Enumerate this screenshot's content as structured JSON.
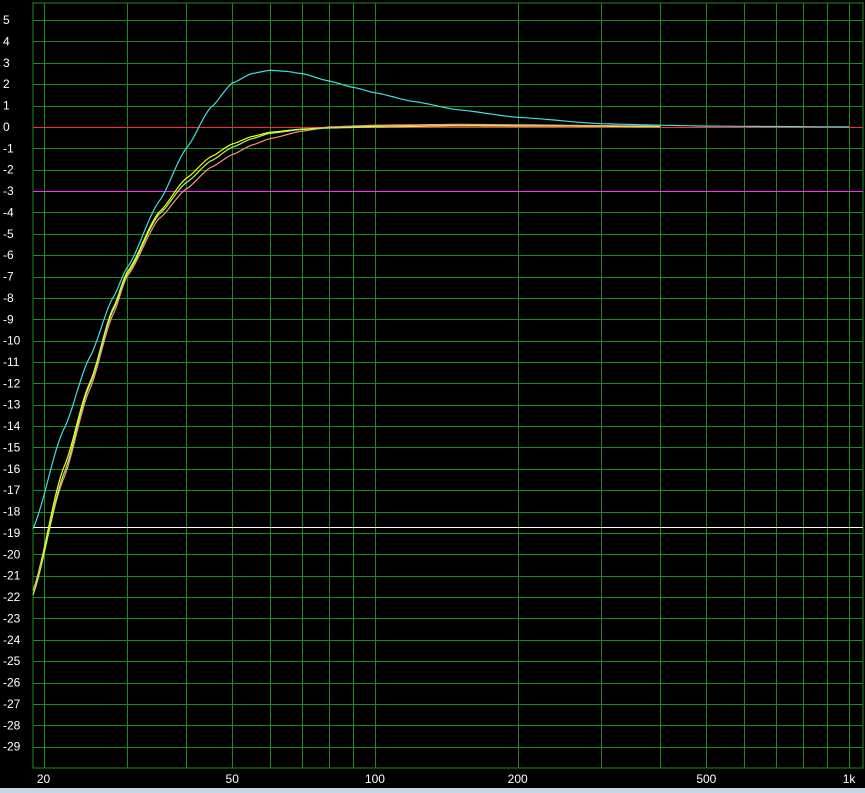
{
  "chart_data": {
    "type": "line",
    "title": "",
    "xlabel": "",
    "ylabel": "",
    "x_scale": "log",
    "xlim": [
      19,
      1070
    ],
    "ylim": [
      -30,
      5.8
    ],
    "grid": true,
    "background_color": "#000000",
    "grid_color": "#1f8a1f",
    "x_major_ticks": [
      20,
      50,
      100,
      200,
      500,
      1000
    ],
    "x_tick_labels": [
      "20",
      "50",
      "100",
      "200",
      "500",
      "1k"
    ],
    "x_minor_ticks": [
      30,
      40,
      60,
      70,
      80,
      90,
      300,
      400,
      600,
      700,
      800,
      900
    ],
    "y_ticks": [
      5,
      4,
      3,
      2,
      1,
      0,
      -1,
      -2,
      -3,
      -4,
      -5,
      -6,
      -7,
      -8,
      -9,
      -10,
      -11,
      -12,
      -13,
      -14,
      -15,
      -16,
      -17,
      -18,
      -19,
      -20,
      -21,
      -22,
      -23,
      -24,
      -25,
      -26,
      -27,
      -28,
      -29
    ],
    "reference_lines": [
      {
        "y": 0,
        "color": "#ff2a2a"
      },
      {
        "y": -3,
        "color": "#ff2aff"
      },
      {
        "y": -18.7,
        "color": "#ffffff"
      }
    ],
    "series": [
      {
        "color": "#40e0e0",
        "x": [
          19,
          22,
          25,
          28,
          30,
          35,
          40,
          45,
          50,
          55,
          60,
          65,
          70,
          80,
          90,
          100,
          120,
          150,
          200,
          300,
          400,
          500,
          700,
          1000
        ],
        "y": [
          -18.8,
          -14.2,
          -10.8,
          -8.0,
          -6.6,
          -3.5,
          -1.0,
          0.9,
          2.05,
          2.5,
          2.65,
          2.6,
          2.5,
          2.15,
          1.85,
          1.6,
          1.2,
          0.8,
          0.45,
          0.15,
          0.08,
          0.04,
          0.02,
          0.0
        ]
      },
      {
        "color": "#ffff00",
        "x": [
          19,
          22,
          25,
          28,
          30,
          35,
          40,
          45,
          50,
          55,
          60,
          70,
          80,
          100,
          150,
          200,
          300,
          400
        ],
        "y": [
          -21.7,
          -16.0,
          -12.0,
          -8.5,
          -6.8,
          -4.0,
          -2.4,
          -1.4,
          -0.8,
          -0.45,
          -0.25,
          -0.1,
          -0.03,
          0.05,
          0.1,
          0.08,
          0.05,
          0.02
        ]
      },
      {
        "color": "#ff9080",
        "x": [
          19,
          22,
          25,
          28,
          30,
          35,
          40,
          45,
          50,
          55,
          60,
          70,
          80,
          100,
          150,
          200,
          300,
          400
        ],
        "y": [
          -21.7,
          -16.5,
          -12.3,
          -8.8,
          -7.0,
          -4.3,
          -2.9,
          -1.9,
          -1.3,
          -0.85,
          -0.55,
          -0.2,
          0.0,
          0.08,
          0.12,
          0.1,
          0.06,
          0.03
        ]
      },
      {
        "color": "#a0ff60",
        "x": [
          19,
          22,
          25,
          28,
          30,
          35,
          40,
          45,
          50,
          55,
          60,
          70,
          80,
          100,
          150,
          200,
          300,
          400
        ],
        "y": [
          -21.9,
          -16.3,
          -12.1,
          -8.6,
          -6.9,
          -4.1,
          -2.6,
          -1.6,
          -0.95,
          -0.55,
          -0.3,
          -0.12,
          -0.05,
          0.0,
          0.05,
          0.04,
          0.03,
          0.01
        ]
      }
    ]
  }
}
